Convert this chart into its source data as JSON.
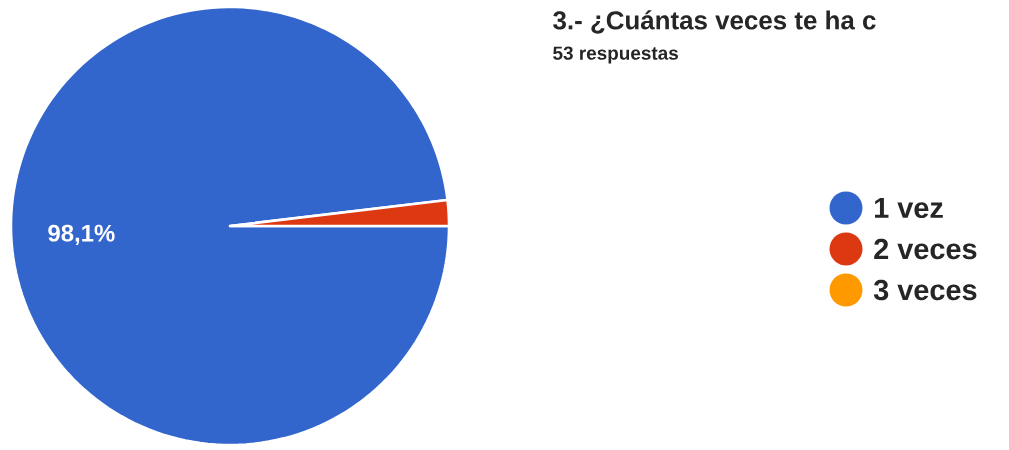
{
  "chart_data": {
    "type": "pie",
    "title": "3.- ¿Cuántas veces te ha c",
    "subtitle": "53 respuestas",
    "categories": [
      "1 vez",
      "2 veces",
      "3 veces"
    ],
    "values": [
      98.1,
      1.9,
      0
    ],
    "colors": [
      "#3366cc",
      "#dc3912",
      "#ff9900"
    ],
    "value_labels": [
      "98,1%",
      null,
      null
    ],
    "legend": "right"
  }
}
